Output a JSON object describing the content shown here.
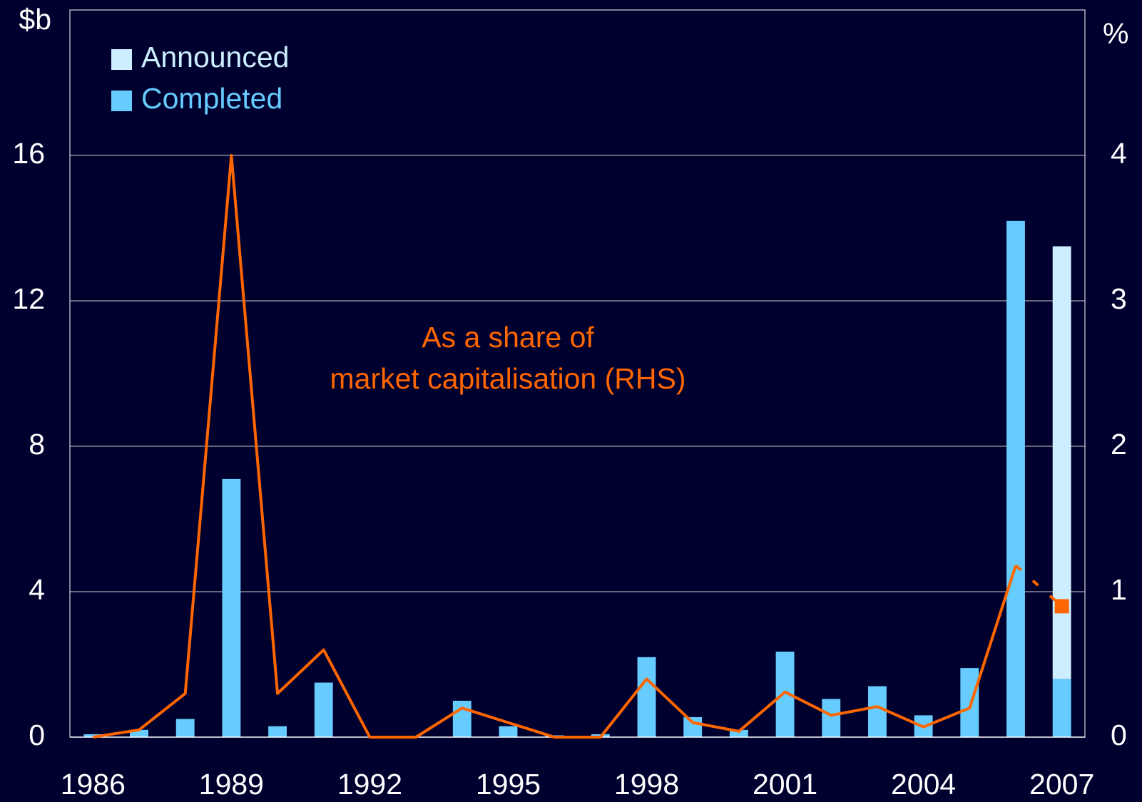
{
  "chart_data": {
    "type": "bar",
    "categories": [
      1986,
      null,
      null,
      1989,
      null,
      null,
      1992,
      null,
      null,
      1995,
      null,
      null,
      1998,
      null,
      null,
      2001,
      null,
      null,
      2004,
      null,
      null,
      2007
    ],
    "y_label": "$b",
    "y2_label": "%",
    "ylim": [
      0,
      20
    ],
    "yticks": [
      0,
      4,
      8,
      12,
      16
    ],
    "y2lim": [
      0,
      5
    ],
    "y2ticks": [
      0,
      1,
      2,
      3,
      4
    ],
    "grid": true,
    "stacked": true,
    "legend": "upper left",
    "annotation": "As a share of\nmarket capitalisation (RHS)",
    "series": [
      {
        "name": "Completed",
        "color": "#66ccff",
        "values": [
          0.08,
          0.2,
          0.5,
          7.1,
          0.3,
          1.5,
          0,
          0,
          1.0,
          0.3,
          0.05,
          0.08,
          2.2,
          0.55,
          0.2,
          2.35,
          1.05,
          1.4,
          0.6,
          1.9,
          14.2,
          1.6
        ]
      },
      {
        "name": "Announced",
        "color": "#cceeff",
        "values": [
          null,
          null,
          null,
          null,
          null,
          null,
          null,
          null,
          null,
          null,
          null,
          null,
          null,
          null,
          null,
          null,
          null,
          null,
          null,
          null,
          null,
          11.9
        ]
      }
    ],
    "line_series": [
      {
        "axis": "y2",
        "color": "#ff6600",
        "values": [
          0,
          0.05,
          0.3,
          4.0,
          0.3,
          0.6,
          0,
          0,
          0.2,
          0.1,
          0,
          0,
          0.4,
          0.1,
          0.04,
          0.31,
          0.15,
          0.21,
          0.07,
          0.2,
          1.18,
          null
        ]
      },
      {
        "axis": "y2",
        "color": "#ff6600",
        "dashed": true,
        "marker": "square",
        "values": [
          null,
          null,
          null,
          null,
          null,
          null,
          null,
          null,
          null,
          null,
          null,
          null,
          null,
          null,
          null,
          null,
          null,
          null,
          null,
          null,
          1.18,
          0.9
        ]
      }
    ]
  }
}
